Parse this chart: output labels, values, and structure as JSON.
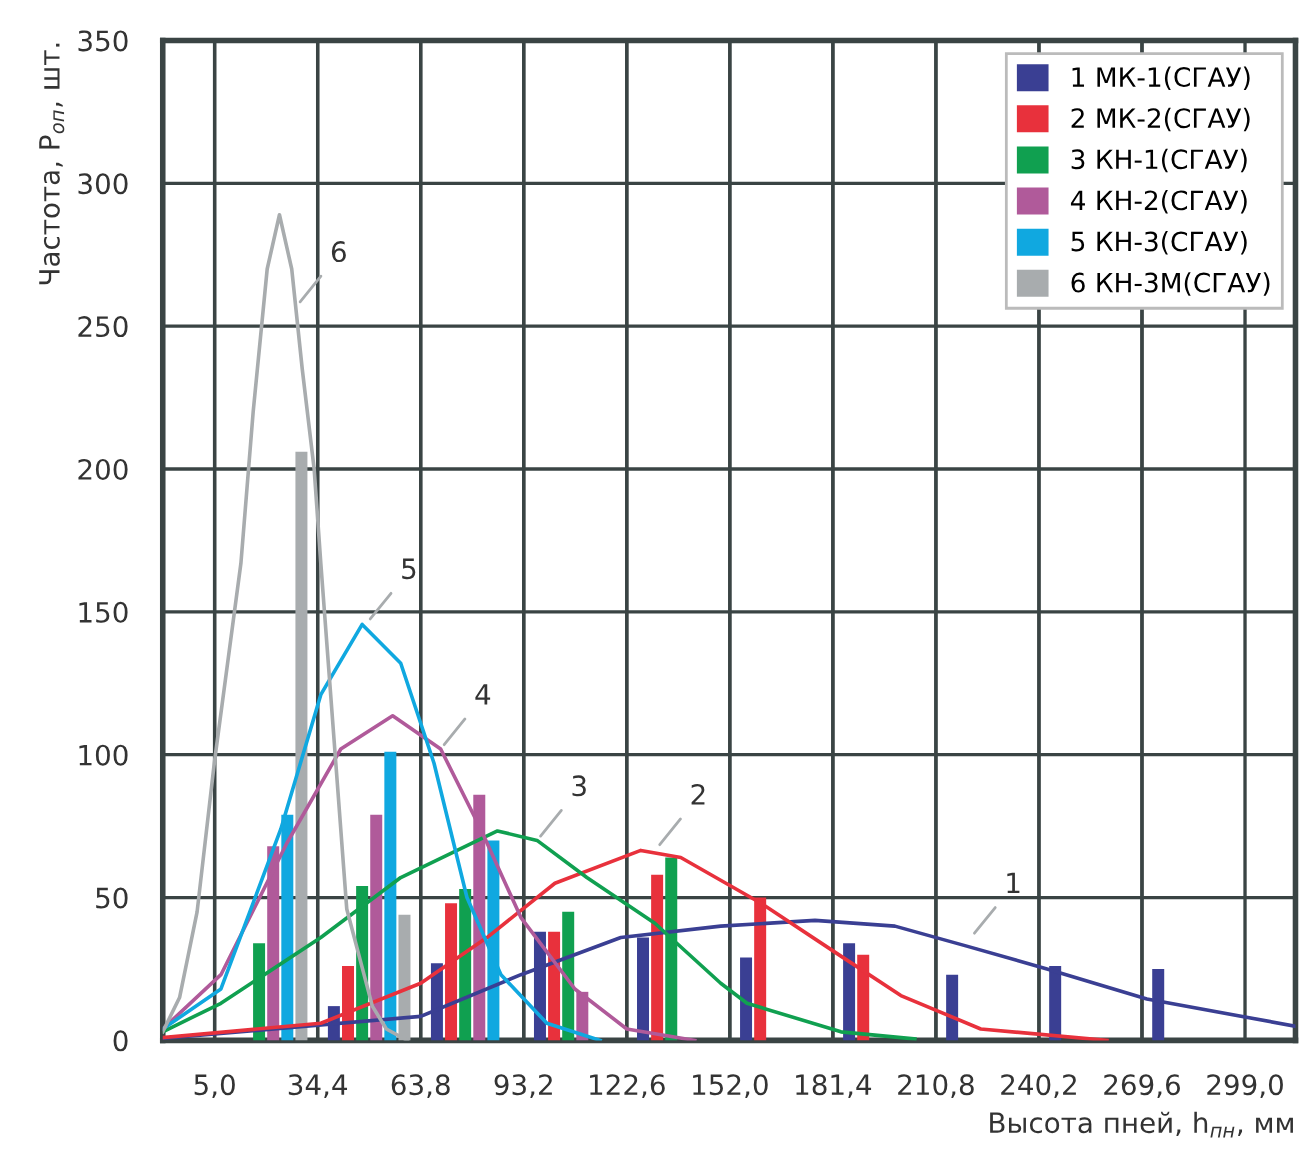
{
  "chart_data": {
    "type": "bar",
    "xlabel": "Высота пней, h$_{пн}$, мм",
    "ylabel": "Частота, P$_{оп}$, шт.",
    "x": [
      19.7,
      49.1,
      78.5,
      107.9,
      137.3,
      166.7,
      196.1,
      225.5,
      254.9,
      284.3
    ],
    "xlim": [
      -9.8,
      313.4
    ],
    "ylim": [
      0,
      350
    ],
    "xticks": [
      {
        "value": 5.0,
        "label": "5,0"
      },
      {
        "value": 34.4,
        "label": "34,4"
      },
      {
        "value": 63.8,
        "label": "63,8"
      },
      {
        "value": 93.2,
        "label": "93,2"
      },
      {
        "value": 122.6,
        "label": "122,6"
      },
      {
        "value": 152.0,
        "label": "152,0"
      },
      {
        "value": 181.4,
        "label": "181,4"
      },
      {
        "value": 210.8,
        "label": "210,8"
      },
      {
        "value": 240.2,
        "label": "240,2"
      },
      {
        "value": 269.6,
        "label": "269,6"
      },
      {
        "value": 299.0,
        "label": "299,0"
      }
    ],
    "yticks": [
      0,
      50,
      100,
      150,
      200,
      250,
      300,
      350
    ],
    "grid": true,
    "legend": "top right",
    "series": [
      {
        "name": "1 МК-1(СГАУ)",
        "color": "#3a3f93",
        "values": [
          null,
          12,
          27,
          38,
          36,
          29,
          34,
          23,
          26,
          25
        ]
      },
      {
        "name": "2 МК-2(СГАУ)",
        "color": "#e8313c",
        "values": [
          null,
          26,
          48,
          38,
          58,
          50,
          30,
          null,
          null,
          null
        ]
      },
      {
        "name": "3 КН-1(СГАУ)",
        "color": "#10a050",
        "values": [
          34,
          54,
          53,
          45,
          64,
          null,
          null,
          null,
          null,
          null
        ]
      },
      {
        "name": "4 КН-2(СГАУ)",
        "color": "#b05a9a",
        "values": [
          68,
          79,
          86,
          17,
          null,
          null,
          null,
          null,
          null,
          null
        ]
      },
      {
        "name": "5 КН-3(СГАУ)",
        "color": "#10a8e0",
        "values": [
          79,
          101,
          70,
          null,
          null,
          null,
          null,
          null,
          null,
          null
        ]
      },
      {
        "name": "6 КН-3М(СГАУ)",
        "color": "#a8acae",
        "values": [
          206,
          44,
          null,
          null,
          null,
          null,
          null,
          null,
          null,
          null
        ]
      },
      {
        "type": "line",
        "color": "#3a3f93",
        "x": [
          -9.8,
          63.8,
          92.4,
          120.9,
          149.4,
          176.3,
          199.1,
          219.6,
          242.5,
          271,
          313.2
        ],
        "values": [
          0.7,
          8.4,
          23,
          36,
          40,
          42,
          40,
          33,
          25,
          14.5,
          5
        ]
      },
      {
        "type": "line",
        "color": "#e8313c",
        "x": [
          -9.8,
          35.3,
          63.8,
          82.7,
          102.1,
          126.6,
          138,
          160.9,
          183.7,
          200.8,
          223.6,
          259.6
        ],
        "values": [
          1,
          6,
          20,
          36,
          55,
          66.5,
          64,
          48,
          29.5,
          15.7,
          4,
          0
        ]
      },
      {
        "type": "line",
        "color": "#10a050",
        "x": [
          -9.8,
          6.8,
          35.3,
          58.1,
          85.7,
          97,
          111.2,
          130.6,
          149.4,
          156.9,
          183.7,
          204.8
        ],
        "values": [
          3,
          13,
          36,
          57,
          73.3,
          70,
          57,
          41,
          20,
          13,
          3,
          0.5
        ]
      },
      {
        "type": "line",
        "color": "#b05a9a",
        "x": [
          -9.8,
          6.8,
          25.6,
          41,
          55.8,
          69.5,
          80.9,
          92.4,
          107.8,
          122.6,
          142
        ],
        "values": [
          4,
          23,
          69,
          102,
          113.6,
          102,
          74,
          43,
          18,
          4,
          0
        ]
      },
      {
        "type": "line",
        "color": "#10a8e0",
        "x": [
          -9.8,
          6.8,
          23.9,
          35.3,
          47.1,
          58.1,
          67.6,
          77,
          86.7,
          99.8,
          115
        ],
        "values": [
          4,
          18,
          74,
          121,
          145.6,
          132,
          97,
          50,
          23,
          6,
          0
        ]
      },
      {
        "type": "line",
        "color": "#a8acae",
        "x": [
          -9.8,
          -5,
          0,
          4.9,
          12.5,
          16,
          20,
          23.5,
          27,
          30,
          33.4,
          35.3,
          42.7,
          50,
          54,
          60
        ],
        "values": [
          3,
          15,
          45,
          97,
          167,
          220,
          270,
          289,
          270,
          235,
          200,
          167,
          46,
          12,
          4,
          0
        ]
      }
    ],
    "annotations": [
      {
        "text": "1",
        "x": 220.8,
        "y": 36
      },
      {
        "text": "2",
        "x": 131,
        "y": 67
      },
      {
        "text": "3",
        "x": 97,
        "y": 70
      },
      {
        "text": "4",
        "x": 69.5,
        "y": 102
      },
      {
        "text": "5",
        "x": 48.4,
        "y": 146
      },
      {
        "text": "6",
        "x": 28.4,
        "y": 257
      }
    ]
  }
}
